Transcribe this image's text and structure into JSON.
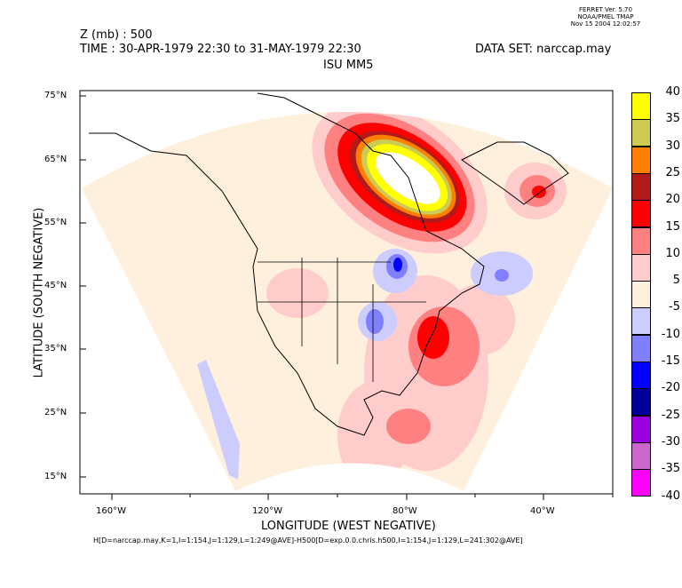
{
  "stamp": {
    "line1": "FERRET Ver. 5.70",
    "line2": "NOAA/PMEL TMAP",
    "line3": "Nov 15 2004  12:02:57"
  },
  "header": {
    "variable": "Z (mb) : 500",
    "time": "TIME : 30-APR-1979 22:30 to 31-MAY-1979 22:30",
    "dataset": "DATA SET: narccap.may",
    "title": "ISU MM5"
  },
  "axes": {
    "ylabel": "LATITUDE (SOUTH NEGATIVE)",
    "xlabel": "LONGITUDE (WEST NEGATIVE)",
    "yticks": [
      "75°N",
      "65°N",
      "55°N",
      "45°N",
      "35°N",
      "25°N",
      "15°N"
    ],
    "xticks": [
      "160°W",
      "120°W",
      "80°W",
      "40°W"
    ]
  },
  "footer": "H[D=narccap.may,K=1,I=1:154,J=1:129,L=1:249@AVE]-H500[D=exp.0.0.chris.h500,I=1:154,J=1:129,L=241:302@AVE]",
  "colorbar": {
    "labels": [
      "40",
      "35",
      "30",
      "25",
      "20",
      "15",
      "10",
      "5",
      "-5",
      "-10",
      "-15",
      "-20",
      "-25",
      "-30",
      "-35",
      "-40"
    ],
    "colors": [
      "#ffff00",
      "#cccc55",
      "#ff8000",
      "#b21a1a",
      "#ff0000",
      "#ff8080",
      "#ffcccc",
      "#fff0dd",
      "#ccccff",
      "#8080ff",
      "#0000ff",
      "#000099",
      "#9900dd",
      "#cc66cc",
      "#ff00ff"
    ]
  }
}
